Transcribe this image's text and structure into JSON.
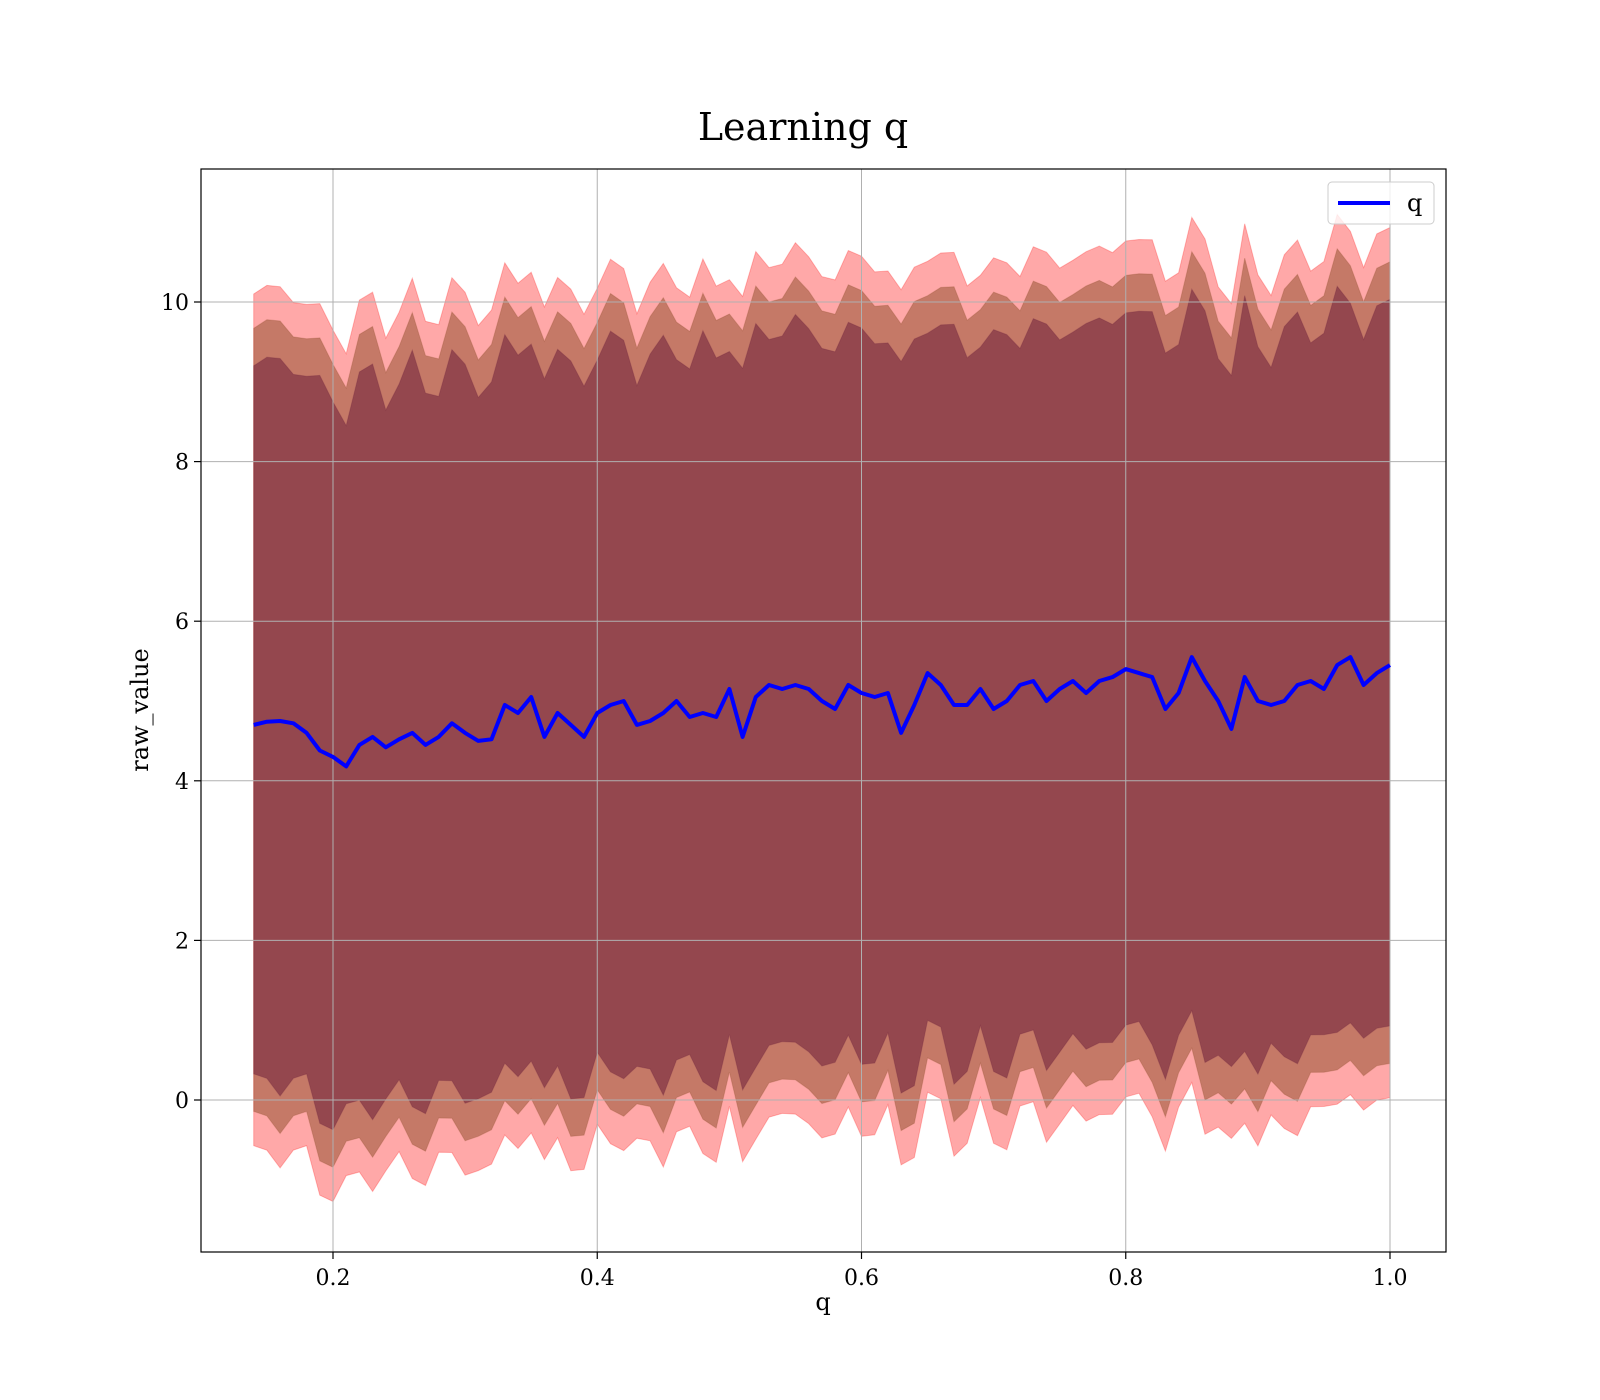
{
  "chart_data": {
    "type": "area",
    "title": "Learning q",
    "xlabel": "q",
    "ylabel": "raw_value",
    "xlim": [
      0.1,
      1.04
    ],
    "ylim": [
      -1.85,
      11.7
    ],
    "x_ticks": [
      0.2,
      0.4,
      0.6,
      0.8,
      1.0
    ],
    "x_tick_labels": [
      "0.2",
      "0.4",
      "0.6",
      "0.8",
      "1.0"
    ],
    "y_ticks": [
      0,
      2,
      4,
      6,
      8,
      10
    ],
    "y_tick_labels": [
      "0",
      "2",
      "4",
      "6",
      "8",
      "10"
    ],
    "grid": true,
    "legend": {
      "position": "top-right",
      "entries": [
        {
          "label": "q",
          "color": "#0000ff"
        }
      ]
    },
    "colors": {
      "line": "#0000ff",
      "band_outer": "#ff0000",
      "band_middle": "#8c4a26",
      "band_inner": "#6b1f3b"
    },
    "band_half_widths": {
      "outer": 5.4,
      "middle": 4.97,
      "inner": 4.5
    },
    "series": [
      {
        "name": "q",
        "x": [
          0.14,
          0.15,
          0.16,
          0.17,
          0.18,
          0.19,
          0.2,
          0.21,
          0.22,
          0.23,
          0.24,
          0.25,
          0.26,
          0.27,
          0.28,
          0.29,
          0.3,
          0.31,
          0.32,
          0.33,
          0.34,
          0.35,
          0.36,
          0.37,
          0.38,
          0.39,
          0.4,
          0.41,
          0.42,
          0.43,
          0.44,
          0.45,
          0.46,
          0.47,
          0.48,
          0.49,
          0.5,
          0.51,
          0.52,
          0.53,
          0.54,
          0.55,
          0.56,
          0.57,
          0.58,
          0.59,
          0.6,
          0.61,
          0.62,
          0.63,
          0.64,
          0.65,
          0.66,
          0.67,
          0.68,
          0.69,
          0.7,
          0.71,
          0.72,
          0.73,
          0.74,
          0.75,
          0.76,
          0.77,
          0.78,
          0.79,
          0.8,
          0.81,
          0.82,
          0.83,
          0.84,
          0.85,
          0.86,
          0.87,
          0.88,
          0.89,
          0.9,
          0.91,
          0.92,
          0.93,
          0.94,
          0.95,
          0.96,
          0.97,
          0.98,
          0.99,
          1.0
        ],
        "y": [
          4.7,
          4.74,
          4.75,
          4.72,
          4.6,
          4.38,
          4.3,
          4.18,
          4.45,
          4.55,
          4.42,
          4.52,
          4.6,
          4.45,
          4.55,
          4.72,
          4.6,
          4.5,
          4.52,
          4.95,
          4.85,
          5.05,
          4.55,
          4.85,
          4.7,
          4.55,
          4.85,
          4.95,
          5.0,
          4.7,
          4.75,
          4.85,
          5.0,
          4.8,
          4.85,
          4.8,
          5.15,
          4.55,
          5.05,
          5.2,
          5.15,
          5.2,
          5.15,
          5.0,
          4.9,
          5.2,
          5.1,
          5.05,
          5.1,
          4.6,
          4.95,
          5.35,
          5.2,
          4.95,
          4.95,
          5.15,
          4.9,
          5.0,
          5.2,
          5.25,
          5.0,
          5.15,
          5.25,
          5.1,
          5.25,
          5.3,
          5.4,
          5.35,
          5.3,
          4.9,
          5.1,
          5.55,
          5.25,
          5.0,
          4.65,
          5.3,
          5.0,
          4.95,
          5.0,
          5.2,
          5.25,
          5.15,
          5.45,
          5.55,
          5.2,
          5.35,
          5.45
        ]
      }
    ]
  }
}
